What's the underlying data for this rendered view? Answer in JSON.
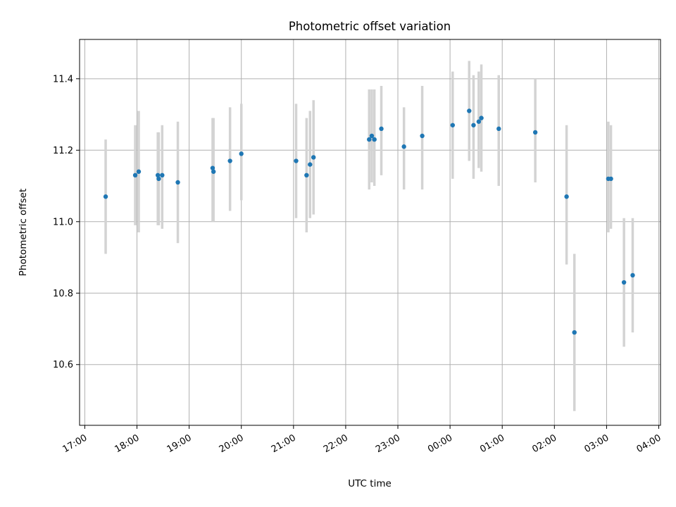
{
  "chart_data": {
    "type": "scatter",
    "title": "Photometric offset variation",
    "xlabel": "UTC time",
    "ylabel": "Photometric offset",
    "x_ticks": [
      "17:00",
      "18:00",
      "19:00",
      "20:00",
      "21:00",
      "22:00",
      "23:00",
      "00:00",
      "01:00",
      "02:00",
      "03:00",
      "04:00"
    ],
    "y_ticks": [
      "10.6",
      "10.8",
      "11.0",
      "11.2",
      "11.4"
    ],
    "xlim": [
      "16:54",
      "04:02"
    ],
    "ylim": [
      10.43,
      11.51
    ],
    "grid": true,
    "errorbar_color": "#d3d3d3",
    "point_color": "#1f77b4",
    "points": [
      {
        "t": "17:24",
        "y": 11.07,
        "lo": 10.91,
        "hi": 11.23
      },
      {
        "t": "17:58",
        "y": 11.13,
        "lo": 10.99,
        "hi": 11.27
      },
      {
        "t": "18:02",
        "y": 11.14,
        "lo": 10.97,
        "hi": 11.31
      },
      {
        "t": "18:24",
        "y": 11.13,
        "lo": 10.99,
        "hi": 11.25
      },
      {
        "t": "18:25",
        "y": 11.12,
        "lo": 10.99,
        "hi": 11.25
      },
      {
        "t": "18:29",
        "y": 11.13,
        "lo": 10.98,
        "hi": 11.27
      },
      {
        "t": "18:47",
        "y": 11.11,
        "lo": 10.94,
        "hi": 11.28
      },
      {
        "t": "19:27",
        "y": 11.15,
        "lo": 11.0,
        "hi": 11.29
      },
      {
        "t": "19:28",
        "y": 11.14,
        "lo": 11.0,
        "hi": 11.29
      },
      {
        "t": "19:47",
        "y": 11.17,
        "lo": 11.03,
        "hi": 11.32
      },
      {
        "t": "20:00",
        "y": 11.19,
        "lo": 11.06,
        "hi": 11.33
      },
      {
        "t": "21:03",
        "y": 11.17,
        "lo": 11.01,
        "hi": 11.33
      },
      {
        "t": "21:15",
        "y": 11.13,
        "lo": 10.97,
        "hi": 11.29
      },
      {
        "t": "21:19",
        "y": 11.16,
        "lo": 11.01,
        "hi": 11.31
      },
      {
        "t": "21:23",
        "y": 11.18,
        "lo": 11.02,
        "hi": 11.34
      },
      {
        "t": "22:27",
        "y": 11.23,
        "lo": 11.09,
        "hi": 11.37
      },
      {
        "t": "22:30",
        "y": 11.24,
        "lo": 11.11,
        "hi": 11.37
      },
      {
        "t": "22:33",
        "y": 11.23,
        "lo": 11.1,
        "hi": 11.37
      },
      {
        "t": "22:41",
        "y": 11.26,
        "lo": 11.13,
        "hi": 11.38
      },
      {
        "t": "23:07",
        "y": 11.21,
        "lo": 11.09,
        "hi": 11.32
      },
      {
        "t": "23:28",
        "y": 11.24,
        "lo": 11.09,
        "hi": 11.38
      },
      {
        "t": "00:03",
        "y": 11.27,
        "lo": 11.12,
        "hi": 11.42
      },
      {
        "t": "00:22",
        "y": 11.31,
        "lo": 11.17,
        "hi": 11.45
      },
      {
        "t": "00:27",
        "y": 11.27,
        "lo": 11.12,
        "hi": 11.41
      },
      {
        "t": "00:33",
        "y": 11.28,
        "lo": 11.15,
        "hi": 11.42
      },
      {
        "t": "00:36",
        "y": 11.29,
        "lo": 11.14,
        "hi": 11.44
      },
      {
        "t": "00:56",
        "y": 11.26,
        "lo": 11.1,
        "hi": 11.41
      },
      {
        "t": "01:38",
        "y": 11.25,
        "lo": 11.11,
        "hi": 11.4
      },
      {
        "t": "02:14",
        "y": 11.07,
        "lo": 10.88,
        "hi": 11.27
      },
      {
        "t": "02:23",
        "y": 10.69,
        "lo": 10.47,
        "hi": 10.91
      },
      {
        "t": "03:02",
        "y": 11.12,
        "lo": 10.97,
        "hi": 11.28
      },
      {
        "t": "03:05",
        "y": 11.12,
        "lo": 10.98,
        "hi": 11.27
      },
      {
        "t": "03:20",
        "y": 10.83,
        "lo": 10.65,
        "hi": 11.01
      },
      {
        "t": "03:30",
        "y": 10.85,
        "lo": 10.69,
        "hi": 11.01
      }
    ]
  }
}
